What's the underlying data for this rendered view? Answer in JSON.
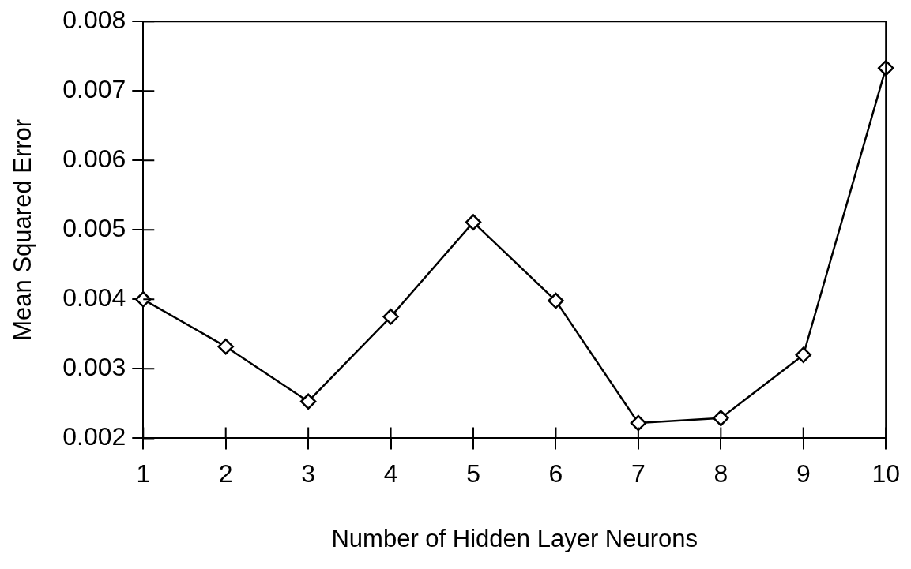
{
  "chart_data": {
    "type": "line",
    "xlabel": "Number of Hidden Layer Neurons",
    "ylabel": "Mean Squared Error",
    "categories": [
      "1",
      "2",
      "3",
      "4",
      "5",
      "6",
      "7",
      "8",
      "9",
      "10"
    ],
    "series": [
      {
        "color": "#000000",
        "values": [
          0.004,
          0.00332,
          0.00253,
          0.00375,
          0.00511,
          0.00398,
          0.00222,
          0.00229,
          0.0032,
          0.00733
        ]
      }
    ],
    "ylim": [
      0.002,
      0.008
    ],
    "yticks": [
      0.002,
      0.003,
      0.004,
      0.005,
      0.006,
      0.007,
      0.008
    ],
    "grid": false,
    "legend": false,
    "marker": "diamond",
    "line_style": "solid"
  }
}
